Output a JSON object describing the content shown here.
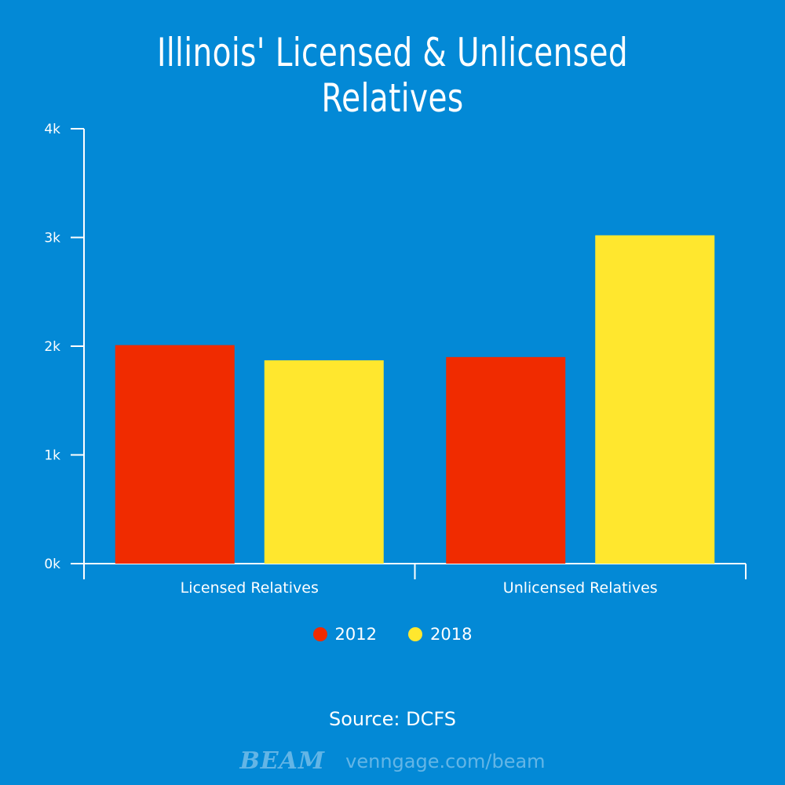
{
  "colors": {
    "background": "#0389d6",
    "series_2012": "#f02b00",
    "series_2018": "#ffe72e",
    "axis": "#ffffff"
  },
  "chart_data": {
    "type": "bar",
    "title": "Illinois' Licensed & Unlicensed Relatives",
    "categories": [
      "Licensed Relatives",
      "Unlicensed Relatives"
    ],
    "series": [
      {
        "name": "2012",
        "color": "#f02b00",
        "values": [
          2010,
          1900
        ]
      },
      {
        "name": "2018",
        "color": "#ffe72e",
        "values": [
          1870,
          3020
        ]
      }
    ],
    "ylim": [
      0,
      4000
    ],
    "yticks": [
      {
        "value": 0,
        "label": "0k"
      },
      {
        "value": 1000,
        "label": "1k"
      },
      {
        "value": 2000,
        "label": "2k"
      },
      {
        "value": 3000,
        "label": "3k"
      },
      {
        "value": 4000,
        "label": "4k"
      }
    ],
    "grid": false,
    "legend_position": "bottom-center"
  },
  "source": "Source: DCFS",
  "footer": {
    "logo_text": "BEAM",
    "url": "venngage.com/beam"
  }
}
